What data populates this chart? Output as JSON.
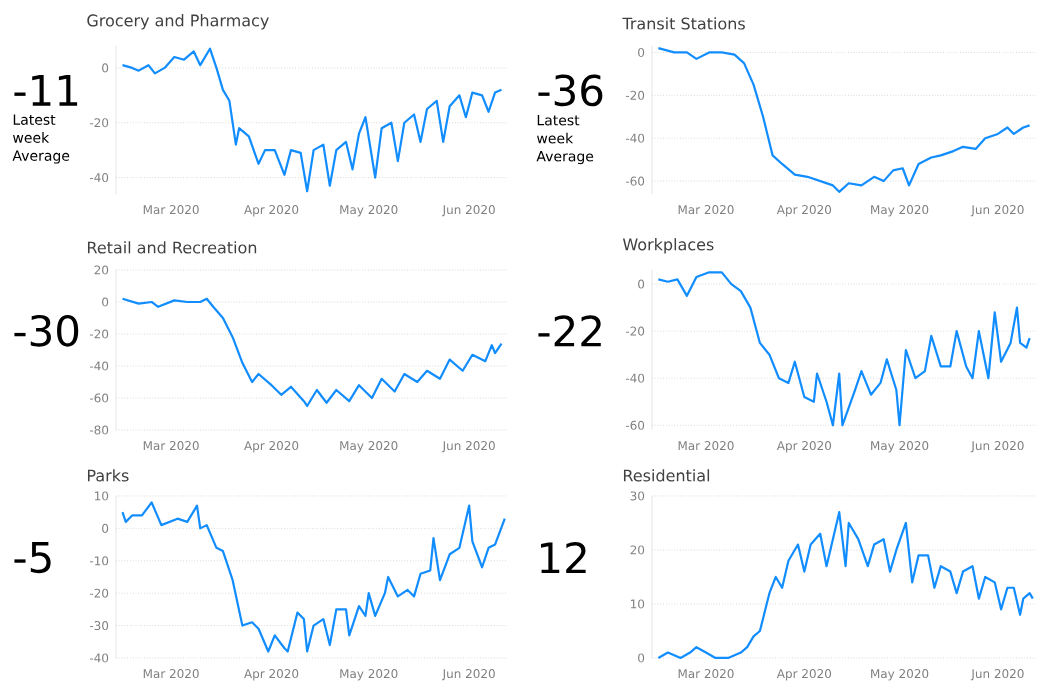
{
  "chart_data": [
    {
      "type": "line",
      "title": "Grocery and Pharmacy",
      "annotations": [
        "-11",
        "Latest week Average"
      ],
      "color": "#118dff",
      "grid": "y",
      "xlim": [
        "2020-02-13",
        "2020-06-13"
      ],
      "xticks": [
        {
          "value": "2020-03-01",
          "label": "Mar 2020"
        },
        {
          "value": "2020-04-01",
          "label": "Apr 2020"
        },
        {
          "value": "2020-05-01",
          "label": "May 2020"
        },
        {
          "value": "2020-06-01",
          "label": "Jun 2020"
        }
      ],
      "ylim": [
        -46,
        8
      ],
      "yticks": [
        -40,
        -20,
        0
      ],
      "x": [
        "2020-02-15",
        "2020-02-18",
        "2020-02-20",
        "2020-02-23",
        "2020-02-25",
        "2020-02-28",
        "2020-03-02",
        "2020-03-05",
        "2020-03-08",
        "2020-03-10",
        "2020-03-13",
        "2020-03-15",
        "2020-03-17",
        "2020-03-19",
        "2020-03-21",
        "2020-03-22",
        "2020-03-25",
        "2020-03-28",
        "2020-03-30",
        "2020-04-02",
        "2020-04-05",
        "2020-04-07",
        "2020-04-10",
        "2020-04-12",
        "2020-04-14",
        "2020-04-17",
        "2020-04-19",
        "2020-04-21",
        "2020-04-24",
        "2020-04-26",
        "2020-04-28",
        "2020-04-30",
        "2020-05-03",
        "2020-05-05",
        "2020-05-08",
        "2020-05-10",
        "2020-05-12",
        "2020-05-15",
        "2020-05-17",
        "2020-05-19",
        "2020-05-22",
        "2020-05-24",
        "2020-05-26",
        "2020-05-29",
        "2020-05-31",
        "2020-06-02",
        "2020-06-05",
        "2020-06-07",
        "2020-06-09",
        "2020-06-11"
      ],
      "values": [
        1,
        0,
        -1,
        1,
        -2,
        0,
        4,
        3,
        6,
        1,
        7,
        0,
        -8,
        -12,
        -28,
        -22,
        -25,
        -35,
        -30,
        -30,
        -39,
        -30,
        -31,
        -45,
        -30,
        -28,
        -43,
        -30,
        -27,
        -37,
        -24,
        -18,
        -40,
        -22,
        -20,
        -34,
        -20,
        -17,
        -27,
        -15,
        -12,
        -27,
        -14,
        -10,
        -18,
        -9,
        -10,
        -16,
        -9,
        -8
      ]
    },
    {
      "type": "line",
      "title": "Transit Stations",
      "annotations": [
        "-36",
        "Latest week Average"
      ],
      "color": "#118dff",
      "grid": "y",
      "xlim": [
        "2020-02-13",
        "2020-06-13"
      ],
      "xticks": [
        {
          "value": "2020-03-01",
          "label": "Mar 2020"
        },
        {
          "value": "2020-04-01",
          "label": "Apr 2020"
        },
        {
          "value": "2020-05-01",
          "label": "May 2020"
        },
        {
          "value": "2020-06-01",
          "label": "Jun 2020"
        }
      ],
      "ylim": [
        -66,
        3
      ],
      "yticks": [
        -60,
        -40,
        -20,
        0
      ],
      "x": [
        "2020-02-15",
        "2020-02-20",
        "2020-02-24",
        "2020-02-27",
        "2020-03-02",
        "2020-03-06",
        "2020-03-10",
        "2020-03-13",
        "2020-03-16",
        "2020-03-19",
        "2020-03-22",
        "2020-03-25",
        "2020-03-29",
        "2020-04-02",
        "2020-04-06",
        "2020-04-10",
        "2020-04-12",
        "2020-04-15",
        "2020-04-19",
        "2020-04-23",
        "2020-04-26",
        "2020-04-29",
        "2020-05-02",
        "2020-05-04",
        "2020-05-07",
        "2020-05-11",
        "2020-05-14",
        "2020-05-18",
        "2020-05-21",
        "2020-05-25",
        "2020-05-28",
        "2020-06-01",
        "2020-06-04",
        "2020-06-06",
        "2020-06-09",
        "2020-06-11"
      ],
      "values": [
        2,
        0,
        0,
        -3,
        0,
        0,
        -1,
        -5,
        -15,
        -30,
        -48,
        -52,
        -57,
        -58,
        -60,
        -62,
        -65,
        -61,
        -62,
        -58,
        -60,
        -55,
        -54,
        -62,
        -52,
        -49,
        -48,
        -46,
        -44,
        -45,
        -40,
        -38,
        -35,
        -38,
        -35,
        -34
      ]
    },
    {
      "type": "line",
      "title": "Retail and Recreation",
      "annotations": [
        "-30"
      ],
      "color": "#118dff",
      "grid": "y",
      "xlim": [
        "2020-02-13",
        "2020-06-13"
      ],
      "xticks": [
        {
          "value": "2020-03-01",
          "label": "Mar 2020"
        },
        {
          "value": "2020-04-01",
          "label": "Apr 2020"
        },
        {
          "value": "2020-05-01",
          "label": "May 2020"
        },
        {
          "value": "2020-06-01",
          "label": "Jun 2020"
        }
      ],
      "ylim": [
        -80,
        20
      ],
      "yticks": [
        -80,
        -60,
        -40,
        -20,
        0,
        20
      ],
      "x": [
        "2020-02-15",
        "2020-02-20",
        "2020-02-24",
        "2020-02-26",
        "2020-03-02",
        "2020-03-06",
        "2020-03-10",
        "2020-03-12",
        "2020-03-14",
        "2020-03-17",
        "2020-03-20",
        "2020-03-23",
        "2020-03-26",
        "2020-03-28",
        "2020-04-01",
        "2020-04-04",
        "2020-04-07",
        "2020-04-11",
        "2020-04-12",
        "2020-04-15",
        "2020-04-18",
        "2020-04-21",
        "2020-04-25",
        "2020-04-28",
        "2020-05-02",
        "2020-05-05",
        "2020-05-09",
        "2020-05-12",
        "2020-05-16",
        "2020-05-19",
        "2020-05-23",
        "2020-05-26",
        "2020-05-30",
        "2020-06-02",
        "2020-06-06",
        "2020-06-08",
        "2020-06-09",
        "2020-06-11"
      ],
      "values": [
        2,
        -1,
        0,
        -3,
        1,
        0,
        0,
        2,
        -3,
        -10,
        -22,
        -38,
        -50,
        -45,
        -52,
        -58,
        -53,
        -62,
        -65,
        -55,
        -63,
        -55,
        -62,
        -52,
        -60,
        -48,
        -56,
        -45,
        -50,
        -43,
        -48,
        -36,
        -43,
        -33,
        -37,
        -27,
        -32,
        -26
      ]
    },
    {
      "type": "line",
      "title": "Workplaces",
      "annotations": [
        "-22"
      ],
      "color": "#118dff",
      "grid": "y",
      "xlim": [
        "2020-02-13",
        "2020-06-13"
      ],
      "xticks": [
        {
          "value": "2020-03-01",
          "label": "Mar 2020"
        },
        {
          "value": "2020-04-01",
          "label": "Apr 2020"
        },
        {
          "value": "2020-05-01",
          "label": "May 2020"
        },
        {
          "value": "2020-06-01",
          "label": "Jun 2020"
        }
      ],
      "ylim": [
        -62,
        6
      ],
      "yticks": [
        -60,
        -40,
        -20,
        0
      ],
      "x": [
        "2020-02-15",
        "2020-02-18",
        "2020-02-21",
        "2020-02-24",
        "2020-02-27",
        "2020-03-02",
        "2020-03-06",
        "2020-03-09",
        "2020-03-12",
        "2020-03-15",
        "2020-03-18",
        "2020-03-21",
        "2020-03-24",
        "2020-03-27",
        "2020-03-29",
        "2020-04-01",
        "2020-04-04",
        "2020-04-05",
        "2020-04-08",
        "2020-04-10",
        "2020-04-12",
        "2020-04-13",
        "2020-04-17",
        "2020-04-19",
        "2020-04-22",
        "2020-04-25",
        "2020-04-27",
        "2020-04-30",
        "2020-05-01",
        "2020-05-03",
        "2020-05-06",
        "2020-05-09",
        "2020-05-11",
        "2020-05-14",
        "2020-05-17",
        "2020-05-19",
        "2020-05-22",
        "2020-05-24",
        "2020-05-26",
        "2020-05-29",
        "2020-05-31",
        "2020-06-02",
        "2020-06-05",
        "2020-06-07",
        "2020-06-08",
        "2020-06-10",
        "2020-06-11"
      ],
      "values": [
        2,
        1,
        2,
        -5,
        3,
        5,
        5,
        0,
        -3,
        -10,
        -25,
        -30,
        -40,
        -42,
        -33,
        -48,
        -50,
        -38,
        -50,
        -60,
        -38,
        -60,
        -45,
        -37,
        -47,
        -42,
        -32,
        -45,
        -60,
        -28,
        -40,
        -37,
        -22,
        -35,
        -35,
        -20,
        -35,
        -40,
        -20,
        -40,
        -12,
        -33,
        -25,
        -10,
        -25,
        -27,
        -23
      ]
    },
    {
      "type": "line",
      "title": "Parks",
      "annotations": [
        "-5"
      ],
      "color": "#118dff",
      "grid": "y",
      "xlim": [
        "2020-02-13",
        "2020-06-13"
      ],
      "xticks": [
        {
          "value": "2020-03-01",
          "label": "Mar 2020"
        },
        {
          "value": "2020-04-01",
          "label": "Apr 2020"
        },
        {
          "value": "2020-05-01",
          "label": "May 2020"
        },
        {
          "value": "2020-06-01",
          "label": "Jun 2020"
        }
      ],
      "ylim": [
        -40,
        10
      ],
      "yticks": [
        -40,
        -30,
        -20,
        -10,
        0,
        10
      ],
      "x": [
        "2020-02-15",
        "2020-02-16",
        "2020-02-18",
        "2020-02-21",
        "2020-02-24",
        "2020-02-27",
        "2020-03-03",
        "2020-03-06",
        "2020-03-09",
        "2020-03-10",
        "2020-03-12",
        "2020-03-15",
        "2020-03-17",
        "2020-03-20",
        "2020-03-23",
        "2020-03-26",
        "2020-03-28",
        "2020-03-31",
        "2020-04-02",
        "2020-04-05",
        "2020-04-06",
        "2020-04-09",
        "2020-04-11",
        "2020-04-12",
        "2020-04-14",
        "2020-04-17",
        "2020-04-19",
        "2020-04-21",
        "2020-04-24",
        "2020-04-25",
        "2020-04-28",
        "2020-04-30",
        "2020-05-01",
        "2020-05-03",
        "2020-05-06",
        "2020-05-07",
        "2020-05-10",
        "2020-05-13",
        "2020-05-15",
        "2020-05-17",
        "2020-05-20",
        "2020-05-21",
        "2020-05-23",
        "2020-05-26",
        "2020-05-29",
        "2020-06-01",
        "2020-06-02",
        "2020-06-05",
        "2020-06-07",
        "2020-06-09",
        "2020-06-12"
      ],
      "values": [
        5,
        2,
        4,
        4,
        8,
        1,
        3,
        2,
        7,
        0,
        1,
        -6,
        -7,
        -16,
        -30,
        -29,
        -31,
        -38,
        -33,
        -37,
        -38,
        -26,
        -28,
        -38,
        -30,
        -28,
        -36,
        -25,
        -25,
        -33,
        -24,
        -27,
        -20,
        -27,
        -20,
        -15,
        -21,
        -19,
        -21,
        -14,
        -13,
        -3,
        -16,
        -8,
        -6,
        7,
        -4,
        -12,
        -6,
        -5,
        3
      ]
    },
    {
      "type": "line",
      "title": "Residential",
      "annotations": [
        "12"
      ],
      "color": "#118dff",
      "grid": "y",
      "xlim": [
        "2020-02-13",
        "2020-06-13"
      ],
      "xticks": [
        {
          "value": "2020-03-01",
          "label": "Mar 2020"
        },
        {
          "value": "2020-04-01",
          "label": "Apr 2020"
        },
        {
          "value": "2020-05-01",
          "label": "May 2020"
        },
        {
          "value": "2020-06-01",
          "label": "Jun 2020"
        }
      ],
      "ylim": [
        0,
        30
      ],
      "yticks": [
        0,
        10,
        20,
        30
      ],
      "x": [
        "2020-02-15",
        "2020-02-18",
        "2020-02-22",
        "2020-02-25",
        "2020-02-27",
        "2020-03-01",
        "2020-03-04",
        "2020-03-08",
        "2020-03-12",
        "2020-03-14",
        "2020-03-16",
        "2020-03-18",
        "2020-03-21",
        "2020-03-23",
        "2020-03-25",
        "2020-03-27",
        "2020-03-30",
        "2020-04-01",
        "2020-04-03",
        "2020-04-06",
        "2020-04-08",
        "2020-04-10",
        "2020-04-12",
        "2020-04-14",
        "2020-04-15",
        "2020-04-18",
        "2020-04-21",
        "2020-04-23",
        "2020-04-26",
        "2020-04-28",
        "2020-04-30",
        "2020-05-03",
        "2020-05-05",
        "2020-05-07",
        "2020-05-10",
        "2020-05-12",
        "2020-05-14",
        "2020-05-17",
        "2020-05-19",
        "2020-05-21",
        "2020-05-24",
        "2020-05-26",
        "2020-05-28",
        "2020-05-31",
        "2020-06-02",
        "2020-06-04",
        "2020-06-06",
        "2020-06-08",
        "2020-06-09",
        "2020-06-11",
        "2020-06-12"
      ],
      "values": [
        0,
        1,
        0,
        1,
        2,
        1,
        0,
        0,
        1,
        2,
        4,
        5,
        12,
        15,
        13,
        18,
        21,
        16,
        21,
        23,
        17,
        22,
        27,
        17,
        25,
        22,
        17,
        21,
        22,
        16,
        20,
        25,
        14,
        19,
        19,
        13,
        17,
        16,
        12,
        16,
        17,
        11,
        15,
        14,
        9,
        13,
        13,
        8,
        11,
        12,
        11
      ]
    }
  ]
}
